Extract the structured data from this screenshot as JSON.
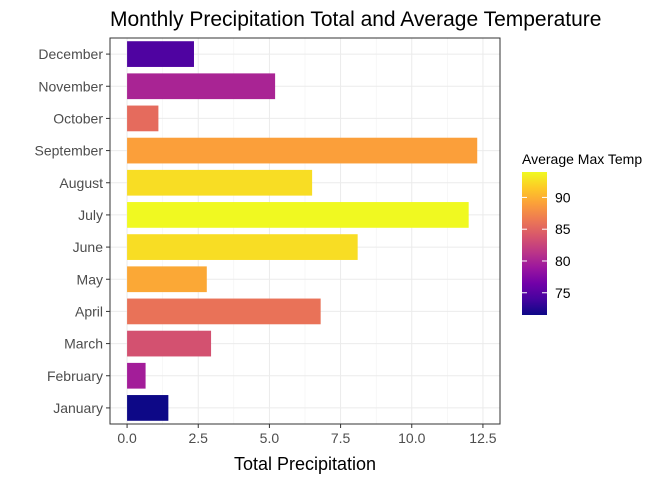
{
  "chart_data": {
    "type": "bar",
    "orientation": "horizontal",
    "title": "Monthly Precipitation Total and Average Temperature",
    "xlabel": "Total Precipitation",
    "ylabel": "",
    "xlim": [
      0,
      12.5
    ],
    "xticks": [
      0,
      2.5,
      5,
      7.5,
      10,
      12.5
    ],
    "xtick_labels": [
      "0.0",
      "2.5",
      "5.0",
      "7.5",
      "10.0",
      "12.5"
    ],
    "grid": true,
    "categories": [
      "January",
      "February",
      "March",
      "April",
      "May",
      "June",
      "July",
      "August",
      "September",
      "October",
      "November",
      "December"
    ],
    "values": [
      1.45,
      0.65,
      2.95,
      6.8,
      2.8,
      8.1,
      12.0,
      6.5,
      12.3,
      1.1,
      5.2,
      2.35
    ],
    "avg_max_temp": [
      71.5,
      79.5,
      83.5,
      86.0,
      89.5,
      92.5,
      94.0,
      92.5,
      89.0,
      85.5,
      80.0,
      74.5
    ],
    "legend": {
      "title": "Average Max Temp",
      "position": "right",
      "range": [
        71.5,
        94.0
      ],
      "ticks": [
        75,
        80,
        85,
        90
      ],
      "tick_labels": [
        "75",
        "80",
        "85",
        "90"
      ]
    },
    "colormap": [
      "#0d0887",
      "#46039f",
      "#7201a8",
      "#9c179e",
      "#bd3786",
      "#d8576b",
      "#ed7953",
      "#fb9f3a",
      "#fdca26",
      "#f0f921"
    ]
  }
}
